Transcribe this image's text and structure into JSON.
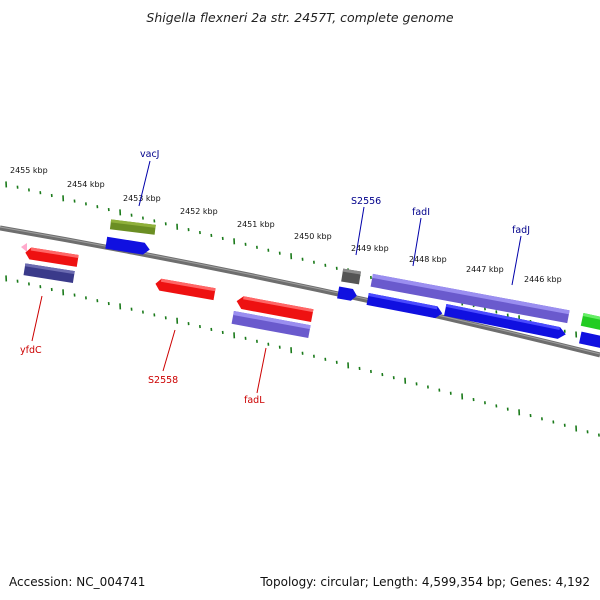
{
  "title": "Shigella flexneri 2a str. 2457T, complete genome",
  "footer": {
    "accession": "Accession: NC_004741",
    "topology": "Topology: circular; Length: 4,599,354 bp; Genes: 4,192"
  },
  "scale_labels": [
    "2455 kbp",
    "2454 kbp",
    "2453 kbp",
    "2452 kbp",
    "2451 kbp",
    "2450 kbp",
    "2449 kbp",
    "2448 kbp",
    "2447 kbp",
    "2446 kbp"
  ],
  "gene_labels": {
    "top": [
      "vacJ",
      "S2556",
      "fadI",
      "fadJ"
    ],
    "bottom": [
      "yfdC",
      "S2558",
      "fadL"
    ]
  },
  "colors": {
    "forward_label": "#00008b",
    "reverse_label": "#cc0000",
    "backbone": "#7a7a7a",
    "tick": "#1a7a1a",
    "cds_blue": "#1010e0",
    "cds_red": "#ee1111",
    "cds_purple": "#6a5acd",
    "cds_darkslate": "#3a3a8a",
    "cds_olive": "#6b8e23",
    "cds_gray": "#555555",
    "cds_green": "#22cc22",
    "cds_pink": "#ffaacc"
  }
}
